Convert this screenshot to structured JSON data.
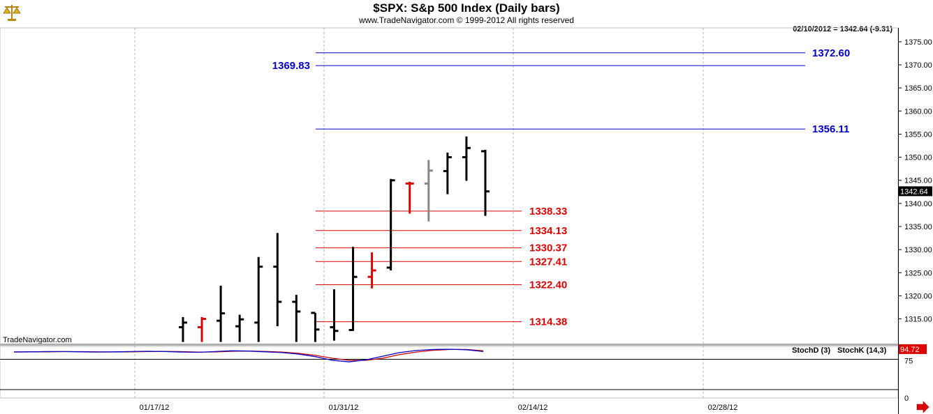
{
  "header": {
    "title": "$SPX:  S&p 500 Index  (Daily bars)",
    "subtitle": "www.TradeNavigator.com © 1999-2012 All rights reserved",
    "readout": "02/10/2012 = 1342.64 (-9.31)",
    "watermark": "TradeNavigator.com",
    "logo_icon": "scales-logo-icon"
  },
  "indicator": {
    "stochd_label": "StochD (3)",
    "stochk_label": "StochK (14,3)",
    "current_value": "94.72",
    "level_label": "75",
    "zero_label": "0",
    "stochd_color": "#cc0000",
    "stochk_color": "#0000cc"
  },
  "chart_data": {
    "type": "ohlc",
    "ylim": [
      1309.5,
      1378
    ],
    "y_ticks": [
      "1375.00",
      "1370.00",
      "1365.00",
      "1360.00",
      "1355.00",
      "1350.00",
      "1345.00",
      "1340.00",
      "1335.00",
      "1330.00",
      "1325.00",
      "1320.00",
      "1315.00"
    ],
    "x_ticks": [
      "01/17/12",
      "01/31/12",
      "02/14/12",
      "02/28/12"
    ],
    "current_price_label": "1342.64",
    "bars": [
      {
        "x": 0,
        "high": 1315.4,
        "low": 1310.0,
        "open": 1313.2,
        "close": 1314.2,
        "color": "#000000"
      },
      {
        "x": 1,
        "high": 1315.4,
        "low": 1310.0,
        "open": 1313.2,
        "close": 1315.0,
        "color": "#dd0000"
      },
      {
        "x": 2,
        "high": 1322.2,
        "low": 1310.0,
        "open": 1314.6,
        "close": 1316.2,
        "color": "#000000"
      },
      {
        "x": 3,
        "high": 1315.9,
        "low": 1310.0,
        "open": 1313.4,
        "close": 1314.9,
        "color": "#000000"
      },
      {
        "x": 4,
        "high": 1328.4,
        "low": 1310.0,
        "open": 1314.2,
        "close": 1326.3,
        "color": "#000000"
      },
      {
        "x": 5,
        "high": 1333.6,
        "low": 1313.4,
        "open": 1326.3,
        "close": 1318.7,
        "color": "#000000"
      },
      {
        "x": 6,
        "high": 1320.2,
        "low": 1310.0,
        "open": 1318.7,
        "close": 1316.6,
        "color": "#000000"
      },
      {
        "x": 7,
        "high": 1316.3,
        "low": 1310.0,
        "open": 1316.3,
        "close": 1312.7,
        "color": "#000000"
      },
      {
        "x": 8,
        "high": 1321.4,
        "low": 1310.3,
        "open": 1313.2,
        "close": 1312.4,
        "color": "#000000"
      },
      {
        "x": 9,
        "high": 1330.6,
        "low": 1312.4,
        "open": 1312.6,
        "close": 1324.1,
        "color": "#000000"
      },
      {
        "x": 10,
        "high": 1329.4,
        "low": 1321.6,
        "open": 1324.1,
        "close": 1325.5,
        "color": "#dd0000"
      },
      {
        "x": 11,
        "high": 1345.3,
        "low": 1325.5,
        "open": 1326.1,
        "close": 1345.0,
        "color": "#000000"
      },
      {
        "x": 12,
        "high": 1344.7,
        "low": 1337.8,
        "open": 1344.3,
        "close": 1344.3,
        "color": "#dd0000"
      },
      {
        "x": 13,
        "high": 1349.4,
        "low": 1336.1,
        "open": 1344.3,
        "close": 1347.1,
        "color": "#888888"
      },
      {
        "x": 14,
        "high": 1351.0,
        "low": 1342.0,
        "open": 1347.0,
        "close": 1350.0,
        "color": "#000000"
      },
      {
        "x": 15,
        "high": 1354.5,
        "low": 1344.9,
        "open": 1350.0,
        "close": 1352.0,
        "color": "#000000"
      },
      {
        "x": 16,
        "high": 1351.6,
        "low": 1337.3,
        "open": 1351.3,
        "close": 1342.6,
        "color": "#000000"
      }
    ],
    "levels": [
      {
        "value": 1372.6,
        "label": "1372.60",
        "color": "#0000cc",
        "side": "right"
      },
      {
        "value": 1369.83,
        "label": "1369.83",
        "color": "#0000cc",
        "side": "left"
      },
      {
        "value": 1356.11,
        "label": "1356.11",
        "color": "#0000cc",
        "side": "right"
      },
      {
        "value": 1338.33,
        "label": "1338.33",
        "color": "#dd0000",
        "side": "right"
      },
      {
        "value": 1334.13,
        "label": "1334.13",
        "color": "#dd0000",
        "side": "right"
      },
      {
        "value": 1330.37,
        "label": "1330.37",
        "color": "#dd0000",
        "side": "right"
      },
      {
        "value": 1327.41,
        "label": "1327.41",
        "color": "#dd0000",
        "side": "right"
      },
      {
        "value": 1322.4,
        "label": "1322.40",
        "color": "#dd0000",
        "side": "right"
      },
      {
        "value": 1314.38,
        "label": "1314.38",
        "color": "#dd0000",
        "side": "right"
      }
    ],
    "stoch_ylim": [
      0,
      100
    ],
    "stoch_k": [
      89,
      89.5,
      90,
      90,
      89.5,
      89,
      89.5,
      90,
      90.5,
      90,
      89,
      88.5,
      90,
      91.5,
      91,
      89.5,
      88,
      85,
      80,
      73,
      70,
      74,
      81,
      88,
      92,
      94,
      94.5,
      93.5,
      90
    ],
    "stoch_d": [
      89.5,
      89.5,
      89.5,
      89.8,
      89.8,
      89.5,
      89.2,
      89.5,
      90,
      90.2,
      89.8,
      89,
      89.2,
      90.5,
      91,
      90.2,
      89,
      86.5,
      82.5,
      77,
      73,
      73,
      77,
      84,
      89,
      92.5,
      94,
      94,
      91.5
    ]
  }
}
